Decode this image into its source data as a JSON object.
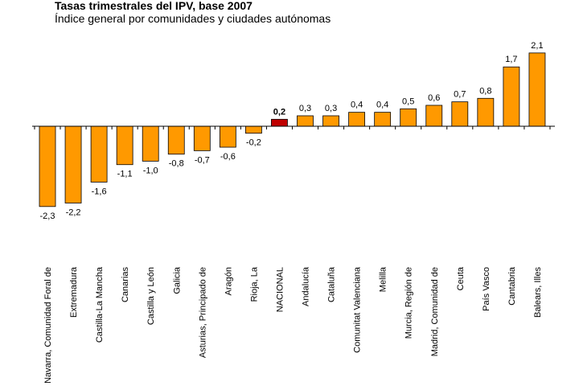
{
  "chart_data": {
    "type": "bar",
    "title": "Tasas trimestrales del IPV, base 2007",
    "subtitle": "Índice general por comunidades y ciudades autónomas",
    "categories": [
      "Navarra, Comunidad Foral de",
      "Extremadura",
      "Castilla-La Mancha",
      "Canarias",
      "Castilla y León",
      "Galicia",
      "Asturias, Principado de",
      "Aragón",
      "Rioja, La",
      "NACIONAL",
      "Andalucía",
      "Cataluña",
      "Comunitat Valenciana",
      "Melilla",
      "Murcia, Región de",
      "Madrid, Comunidad de",
      "Ceuta",
      "País Vasco",
      "Cantabria",
      "Balears, Illes"
    ],
    "values": [
      -2.3,
      -2.2,
      -1.6,
      -1.1,
      -1.0,
      -0.8,
      -0.7,
      -0.6,
      -0.2,
      0.2,
      0.3,
      0.3,
      0.4,
      0.4,
      0.5,
      0.6,
      0.7,
      0.8,
      1.7,
      2.1
    ],
    "data_labels": [
      "-2,3",
      "-2,2",
      "-1,6",
      "-1,1",
      "-1,0",
      "-0,8",
      "-0,7",
      "-0,6",
      "-0,2",
      "0,2",
      "0,3",
      "0,3",
      "0,4",
      "0,4",
      "0,5",
      "0,6",
      "0,7",
      "0,8",
      "1,7",
      "2,1"
    ],
    "highlight_category": "NACIONAL",
    "colors": {
      "bar": "#FF9900",
      "highlight": "#C00000",
      "outline": "#000000"
    },
    "xlabel": "",
    "ylabel": "",
    "ylim": [
      -2.3,
      2.1
    ],
    "grid": false,
    "legend": "none"
  }
}
